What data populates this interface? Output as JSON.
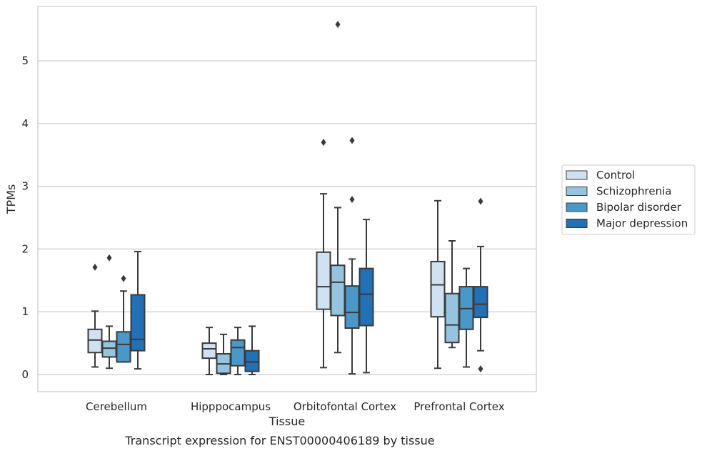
{
  "chart_data": {
    "type": "boxplot",
    "caption": "Transcript expression for ENST00000406189 by tissue",
    "xlabel": "Tissue",
    "ylabel": "TPMs",
    "ylim": [
      -0.28,
      5.9
    ],
    "yticks": [
      0,
      1,
      2,
      3,
      4,
      5
    ],
    "ytick_labels": [
      "0",
      "1",
      "2",
      "3",
      "4",
      "5"
    ],
    "grid": "horizontal",
    "legend_position": "right",
    "categories": [
      "Cerebellum",
      "Hipppocampus",
      "Orbitofontal Cortex",
      "Prefrontal Cortex"
    ],
    "series": [
      {
        "name": "Control",
        "color": "#d0e1f2",
        "boxes": [
          {
            "whislo": 0.12,
            "q1": 0.35,
            "med": 0.55,
            "q3": 0.72,
            "whishi": 1.01,
            "fliers": [
              1.71
            ]
          },
          {
            "whislo": 0.0,
            "q1": 0.26,
            "med": 0.41,
            "q3": 0.5,
            "whishi": 0.75,
            "fliers": []
          },
          {
            "whislo": 0.11,
            "q1": 1.04,
            "med": 1.4,
            "q3": 1.95,
            "whishi": 2.88,
            "fliers": [
              3.7
            ]
          },
          {
            "whislo": 0.1,
            "q1": 0.92,
            "med": 1.43,
            "q3": 1.8,
            "whishi": 2.77,
            "fliers": []
          }
        ]
      },
      {
        "name": "Schizophrenia",
        "color": "#94c4df",
        "boxes": [
          {
            "whislo": 0.1,
            "q1": 0.28,
            "med": 0.42,
            "q3": 0.53,
            "whishi": 0.77,
            "fliers": [
              1.86
            ]
          },
          {
            "whislo": 0.0,
            "q1": 0.02,
            "med": 0.17,
            "q3": 0.33,
            "whishi": 0.64,
            "fliers": []
          },
          {
            "whislo": 0.35,
            "q1": 0.94,
            "med": 1.47,
            "q3": 1.74,
            "whishi": 2.66,
            "fliers": [
              5.58
            ]
          },
          {
            "whislo": 0.43,
            "q1": 0.51,
            "med": 0.79,
            "q3": 1.29,
            "whishi": 2.13,
            "fliers": []
          }
        ]
      },
      {
        "name": "Bipolar disorder",
        "color": "#4a98c9",
        "boxes": [
          {
            "whislo": 0.2,
            "q1": 0.2,
            "med": 0.48,
            "q3": 0.68,
            "whishi": 1.33,
            "fliers": [
              1.53
            ]
          },
          {
            "whislo": 0.0,
            "q1": 0.14,
            "med": 0.43,
            "q3": 0.55,
            "whishi": 0.75,
            "fliers": []
          },
          {
            "whislo": 0.01,
            "q1": 0.74,
            "med": 0.99,
            "q3": 1.41,
            "whishi": 1.84,
            "fliers": [
              2.79,
              3.73
            ]
          },
          {
            "whislo": 0.12,
            "q1": 0.72,
            "med": 1.05,
            "q3": 1.4,
            "whishi": 1.69,
            "fliers": []
          }
        ]
      },
      {
        "name": "Major depression",
        "color": "#2270b5",
        "boxes": [
          {
            "whislo": 0.09,
            "q1": 0.38,
            "med": 0.56,
            "q3": 1.27,
            "whishi": 1.96,
            "fliers": []
          },
          {
            "whislo": 0.0,
            "q1": 0.05,
            "med": 0.2,
            "q3": 0.38,
            "whishi": 0.77,
            "fliers": []
          },
          {
            "whislo": 0.03,
            "q1": 0.78,
            "med": 1.28,
            "q3": 1.69,
            "whishi": 2.47,
            "fliers": []
          },
          {
            "whislo": 0.38,
            "q1": 0.91,
            "med": 1.12,
            "q3": 1.4,
            "whishi": 2.04,
            "fliers": [
              0.09,
              2.76
            ]
          }
        ]
      }
    ]
  }
}
